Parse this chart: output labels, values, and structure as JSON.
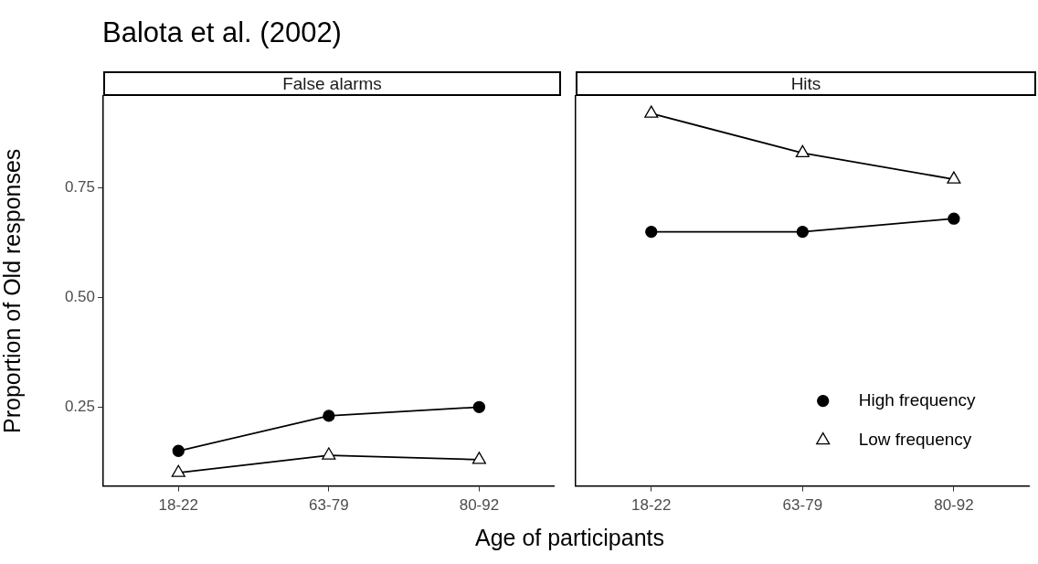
{
  "chart_data": [
    {
      "type": "line",
      "title": "Balota et al. (2002)",
      "subtitle": "False alarms",
      "xlabel": "Age of participants",
      "ylabel": "Proportion of Old responses",
      "categories": [
        "18-22",
        "63-79",
        "80-92"
      ],
      "series": [
        {
          "color": "#000000",
          "marker": "circle",
          "values": [
            0.15,
            0.23,
            0.25
          ]
        },
        {
          "color": "#000000",
          "marker": "triangle",
          "values": [
            0.1,
            0.14,
            0.13
          ]
        }
      ],
      "ylim": [
        0.07,
        0.96
      ],
      "yticks": [
        0.25,
        {
          "value": 0.5,
          "label": "0.50"
        },
        0.75
      ],
      "grid": false,
      "legend": false
    },
    {
      "type": "line",
      "subtitle": "Hits",
      "categories": [
        "18-22",
        "63-79",
        "80-92"
      ],
      "series": [
        {
          "name": "High frequency",
          "color": "#000000",
          "marker": "circle",
          "values": [
            0.65,
            0.65,
            0.68
          ]
        },
        {
          "name": "Low frequency",
          "color": "#000000",
          "marker": "triangle",
          "values": [
            0.92,
            0.83,
            0.77
          ]
        }
      ],
      "ylim": [
        0.07,
        0.96
      ],
      "grid": false,
      "legend": "bottom right",
      "tick_labels": "x"
    }
  ]
}
